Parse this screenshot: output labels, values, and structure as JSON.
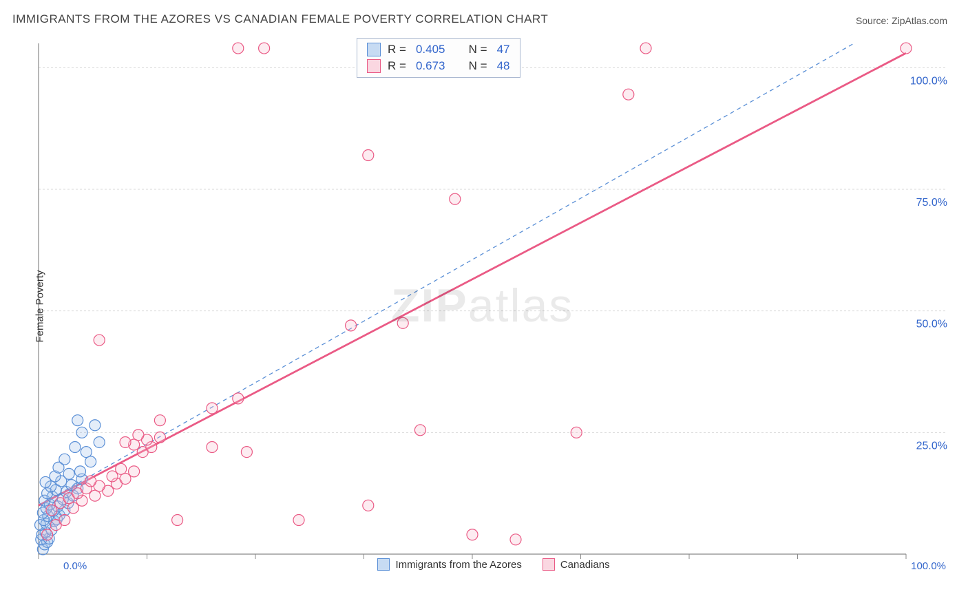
{
  "title": "IMMIGRANTS FROM THE AZORES VS CANADIAN FEMALE POVERTY CORRELATION CHART",
  "source_label": "Source: ",
  "source_name": "ZipAtlas.com",
  "ylabel": "Female Poverty",
  "watermark_bold": "ZIP",
  "watermark_light": "atlas",
  "chart": {
    "type": "scatter",
    "xlim": [
      0,
      100
    ],
    "ylim": [
      0,
      105
    ],
    "grid_color": "#d9d9d9",
    "axis_color": "#888888",
    "tick_color": "#888888",
    "ytick_values": [
      25,
      50,
      75,
      100
    ],
    "ytick_labels": [
      "25.0%",
      "50.0%",
      "75.0%",
      "100.0%"
    ],
    "ytick_label_color": "#3366cc",
    "xtick_labels": {
      "min": "0.0%",
      "max": "100.0%"
    },
    "xtick_label_color": "#3366cc",
    "xtick_minor_step": 12.5,
    "marker_radius": 8,
    "marker_stroke_width": 1.2,
    "marker_fill_opacity": 0.28,
    "series": [
      {
        "name": "Immigrants from the Azores",
        "color_stroke": "#5a8fd6",
        "color_fill": "#9fc0ea",
        "R": "0.405",
        "N": "47",
        "trend": {
          "x1": 0,
          "y1": 10,
          "x2": 94,
          "y2": 105,
          "dash": "6,5",
          "width": 1.3
        },
        "points": [
          [
            0.5,
            1
          ],
          [
            0.7,
            2
          ],
          [
            1,
            2.5
          ],
          [
            0.3,
            3
          ],
          [
            1.2,
            3.2
          ],
          [
            0.4,
            4
          ],
          [
            0.8,
            4.5
          ],
          [
            1.5,
            5
          ],
          [
            0.2,
            6
          ],
          [
            0.9,
            6.2
          ],
          [
            1.8,
            6.8
          ],
          [
            0.6,
            7
          ],
          [
            2.1,
            7.2
          ],
          [
            1.1,
            7.8
          ],
          [
            2.4,
            8
          ],
          [
            0.5,
            8.5
          ],
          [
            1.7,
            8.9
          ],
          [
            3,
            9
          ],
          [
            0.9,
            9.4
          ],
          [
            2.2,
            9.8
          ],
          [
            1.3,
            10.2
          ],
          [
            3.4,
            10.5
          ],
          [
            0.7,
            11
          ],
          [
            2.8,
            11.3
          ],
          [
            1.6,
            11.8
          ],
          [
            4,
            12
          ],
          [
            1,
            12.5
          ],
          [
            3.2,
            12.8
          ],
          [
            2,
            13.2
          ],
          [
            4.5,
            13.5
          ],
          [
            1.4,
            13.9
          ],
          [
            3.8,
            14.2
          ],
          [
            0.8,
            14.8
          ],
          [
            2.6,
            15
          ],
          [
            5,
            15.4
          ],
          [
            1.9,
            16
          ],
          [
            3.5,
            16.5
          ],
          [
            4.8,
            17
          ],
          [
            2.3,
            17.8
          ],
          [
            6,
            19
          ],
          [
            3,
            19.5
          ],
          [
            5.5,
            21
          ],
          [
            4.2,
            22
          ],
          [
            7,
            23
          ],
          [
            5,
            25
          ],
          [
            6.5,
            26.5
          ],
          [
            4.5,
            27.5
          ]
        ]
      },
      {
        "name": "Canadians",
        "color_stroke": "#ea5a85",
        "color_fill": "#f7b9cb",
        "R": "0.673",
        "N": "48",
        "trend": {
          "x1": 0,
          "y1": 10,
          "x2": 100,
          "y2": 103,
          "dash": "none",
          "width": 2.8
        },
        "points": [
          [
            1,
            4
          ],
          [
            2,
            6
          ],
          [
            3,
            7
          ],
          [
            1.5,
            9
          ],
          [
            4,
            9.5
          ],
          [
            2.5,
            10.5
          ],
          [
            5,
            11
          ],
          [
            3.5,
            11.5
          ],
          [
            6.5,
            12
          ],
          [
            4.5,
            12.5
          ],
          [
            8,
            13
          ],
          [
            5.5,
            13.5
          ],
          [
            7,
            14
          ],
          [
            9,
            14.5
          ],
          [
            6,
            15
          ],
          [
            10,
            15.5
          ],
          [
            8.5,
            16
          ],
          [
            11,
            17
          ],
          [
            9.5,
            17.5
          ],
          [
            12,
            21
          ],
          [
            13,
            22
          ],
          [
            11,
            22.5
          ],
          [
            10,
            23
          ],
          [
            12.5,
            23.5
          ],
          [
            14,
            24
          ],
          [
            11.5,
            24.5
          ],
          [
            14,
            27.5
          ],
          [
            20,
            30
          ],
          [
            23,
            32
          ],
          [
            20,
            22
          ],
          [
            24,
            21
          ],
          [
            30,
            7
          ],
          [
            38,
            10
          ],
          [
            36,
            47
          ],
          [
            42,
            47.5
          ],
          [
            44,
            25.5
          ],
          [
            50,
            4
          ],
          [
            55,
            3
          ],
          [
            62,
            25
          ],
          [
            23,
            104
          ],
          [
            38,
            82
          ],
          [
            48,
            73
          ],
          [
            68,
            94.5
          ],
          [
            70,
            104
          ],
          [
            100,
            104
          ],
          [
            7,
            44
          ],
          [
            16,
            7
          ],
          [
            26,
            104
          ]
        ]
      }
    ]
  },
  "legend": {
    "items": [
      {
        "label": "Immigrants from the Azores",
        "stroke": "#5a8fd6",
        "fill": "#c7dbf3"
      },
      {
        "label": "Canadians",
        "stroke": "#ea5a85",
        "fill": "#fad7e1"
      }
    ]
  },
  "top_legend": {
    "rows": [
      {
        "swatch_stroke": "#5a8fd6",
        "swatch_fill": "#c7dbf3",
        "r_label": "R =",
        "r_value": "0.405",
        "n_label": "N =",
        "n_value": "47"
      },
      {
        "swatch_stroke": "#ea5a85",
        "swatch_fill": "#fad7e1",
        "r_label": "R =",
        "r_value": "0.673",
        "n_label": "N =",
        "n_value": "48"
      }
    ]
  }
}
